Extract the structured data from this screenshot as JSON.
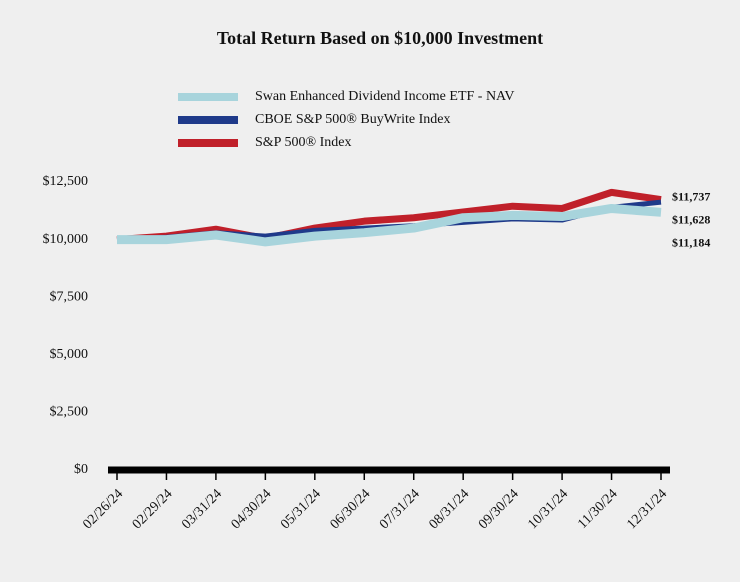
{
  "chart_data": {
    "type": "line",
    "title": "Total Return Based on $10,000 Investment",
    "categories": [
      "02/26/24",
      "02/29/24",
      "03/31/24",
      "04/30/24",
      "05/31/24",
      "06/30/24",
      "07/31/24",
      "08/31/24",
      "09/30/24",
      "10/31/24",
      "11/30/24",
      "12/31/24"
    ],
    "series": [
      {
        "name": "S&P 500® Index",
        "color": "#c0202a",
        "width": 7,
        "values": [
          10000,
          10150,
          10450,
          10050,
          10500,
          10800,
          10950,
          11200,
          11450,
          11350,
          12050,
          11737
        ],
        "value_labels": [
          null,
          null,
          null,
          null,
          null,
          null,
          null,
          null,
          null,
          null,
          null,
          "$11,737"
        ]
      },
      {
        "name": "CBOE S&P 500® BuyWrite Index",
        "color": "#1f3a8a",
        "width": 5,
        "values": [
          10000,
          10100,
          10300,
          10150,
          10400,
          10500,
          10600,
          10750,
          10900,
          10850,
          11400,
          11628
        ],
        "value_labels": [
          null,
          null,
          null,
          null,
          null,
          null,
          null,
          null,
          null,
          null,
          null,
          "$11,628"
        ]
      },
      {
        "name": "Swan Enhanced Dividend Income ETF - NAV",
        "color": "#a8d4dc",
        "width": 9,
        "values": [
          10000,
          10000,
          10200,
          9900,
          10150,
          10300,
          10500,
          10950,
          11050,
          11000,
          11350,
          11184
        ],
        "value_labels": [
          null,
          null,
          null,
          null,
          null,
          null,
          null,
          null,
          null,
          null,
          null,
          "$11,184"
        ]
      }
    ],
    "legend_order": [
      2,
      1,
      0
    ],
    "ylim": [
      0,
      12500
    ],
    "yticks": [
      {
        "value": 0,
        "label": "$0"
      },
      {
        "value": 2500,
        "label": "$2,500"
      },
      {
        "value": 5000,
        "label": "$5,000"
      },
      {
        "value": 7500,
        "label": "$7,500"
      },
      {
        "value": 10000,
        "label": "$10,000"
      },
      {
        "value": 12500,
        "label": "$12,500"
      }
    ],
    "grid": false
  }
}
